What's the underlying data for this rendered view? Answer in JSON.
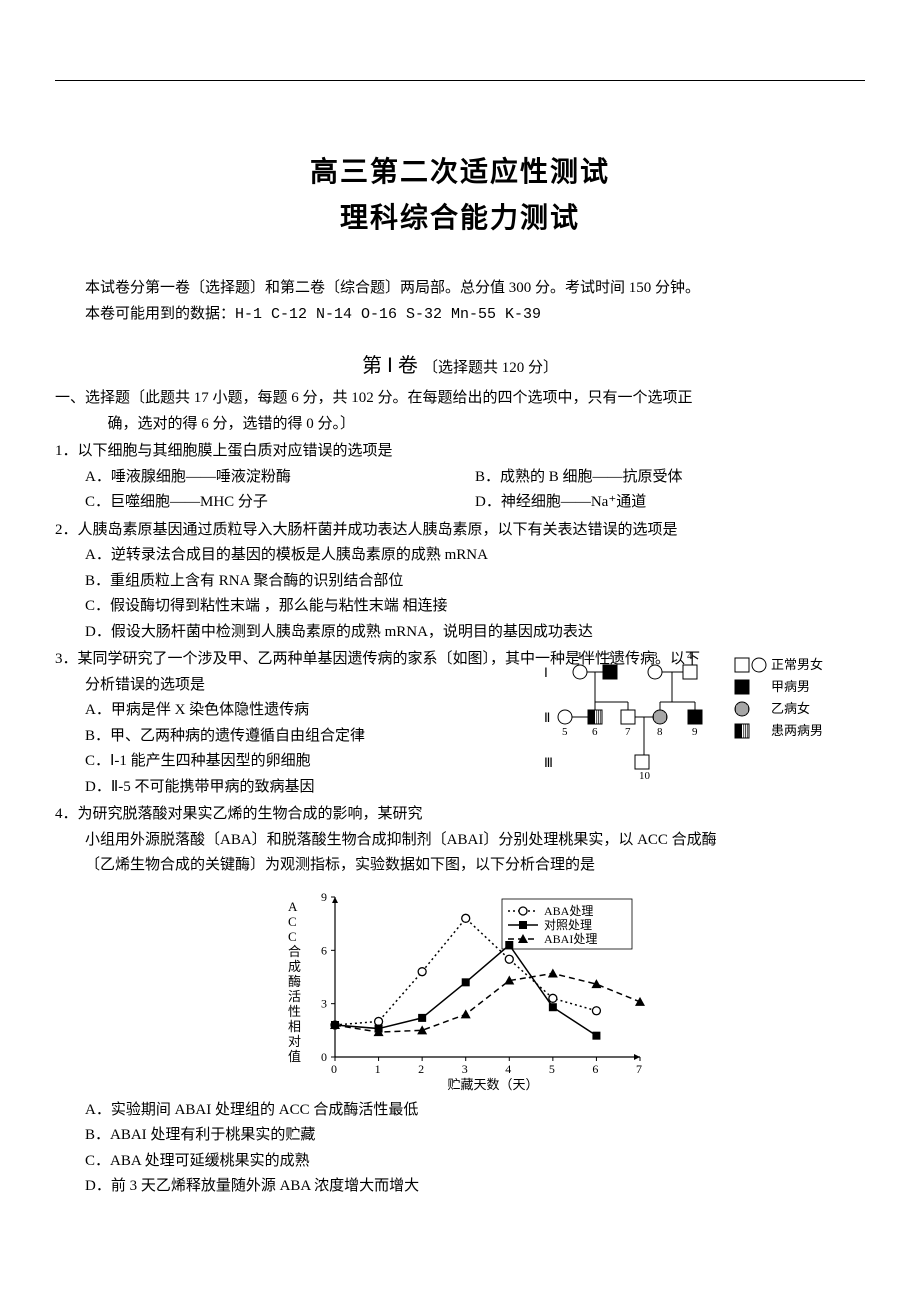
{
  "header": {
    "title_main": "高三第二次适应性测试",
    "title_sub": "理科综合能力测试",
    "intro": "本试卷分第一卷〔选择题〕和第二卷〔综合题〕两局部。总分值 300 分。考试时间 150 分钟。",
    "data_line": "本卷可能用到的数据：H-1  C-12  N-14  O-16  S-32  Mn-55  K-39"
  },
  "section1": {
    "heading_main": "第 Ⅰ 卷",
    "heading_paren": "〔选择题共 120 分〕",
    "instructions_line1": "一、选择题〔此题共 17 小题，每题 6 分，共 102 分。在每题给出的四个选项中，只有一个选项正",
    "instructions_line2": "确，选对的得 6 分，选错的得 0 分。〕"
  },
  "q1": {
    "stem": "1．以下细胞与其细胞膜上蛋白质对应错误的选项是",
    "A": "A．唾液腺细胞——唾液淀粉酶",
    "B": "B．成熟的 B 细胞——抗原受体",
    "C": "C．巨噬细胞——MHC 分子",
    "D": "D．神经细胞——Na⁺通道"
  },
  "q2": {
    "stem": "2．人胰岛素原基因通过质粒导入大肠杆菌并成功表达人胰岛素原，以下有关表达错误的选项是",
    "A": "A．逆转录法合成目的基因的模板是人胰岛素原的成熟 mRNA",
    "B": "B．重组质粒上含有 RNA 聚合酶的识别结合部位",
    "C": "C．假设酶切得到粘性末端 ，那么能与粘性末端 相连接",
    "D": "D．假设大肠杆菌中检测到人胰岛素原的成熟 mRNA，说明目的基因成功表达"
  },
  "q3": {
    "stem": "3．某同学研究了一个涉及甲、乙两种单基因遗传病的家系〔如图〕，其中一种是伴性遗传病。以下",
    "stem2": "分析错误的选项是",
    "A": "A．甲病是伴 X 染色体隐性遗传病",
    "B": "B．甲、乙两种病的遗传遵循自由组合定律",
    "C": "C．Ⅰ-1 能产生四种基因型的卵细胞",
    "D": "D．Ⅱ-5 不可能携带甲病的致病基因",
    "pedigree": {
      "type": "pedigree",
      "generations": [
        "Ⅰ",
        "Ⅱ",
        "Ⅲ"
      ],
      "gen1_numbers": [
        "1",
        "2",
        "3",
        "4"
      ],
      "gen2_numbers": [
        "5",
        "6",
        "7",
        "8",
        "9"
      ],
      "gen3_numbers": [
        "10"
      ],
      "legend": {
        "normal": "正常男女",
        "male_a": "甲病男",
        "female_b": "乙病女",
        "male_both": "患两病男"
      },
      "colors": {
        "stroke": "#000000",
        "fill_affected": "#000000",
        "fill_normal": "#ffffff"
      },
      "nodes": [
        {
          "id": "I-1",
          "gen": 1,
          "x": 40,
          "sex": "F",
          "pheno": "normal"
        },
        {
          "id": "I-2",
          "gen": 1,
          "x": 70,
          "sex": "M",
          "pheno": "A"
        },
        {
          "id": "I-3",
          "gen": 1,
          "x": 115,
          "sex": "F",
          "pheno": "normal"
        },
        {
          "id": "I-4",
          "gen": 1,
          "x": 150,
          "sex": "M",
          "pheno": "normal"
        },
        {
          "id": "II-5",
          "gen": 2,
          "x": 25,
          "sex": "F",
          "pheno": "normal"
        },
        {
          "id": "II-6",
          "gen": 2,
          "x": 55,
          "sex": "M",
          "pheno": "both"
        },
        {
          "id": "II-7",
          "gen": 2,
          "x": 88,
          "sex": "M",
          "pheno": "normal"
        },
        {
          "id": "II-8",
          "gen": 2,
          "x": 120,
          "sex": "F",
          "pheno": "B"
        },
        {
          "id": "II-9",
          "gen": 2,
          "x": 155,
          "sex": "M",
          "pheno": "A"
        },
        {
          "id": "III-10",
          "gen": 3,
          "x": 102,
          "sex": "M",
          "pheno": "normal"
        }
      ]
    }
  },
  "q4": {
    "stem": "4．为研究脱落酸对果实乙烯的生物合成的影响，某研究",
    "body1": "小组用外源脱落酸〔ABA〕和脱落酸生物合成抑制剂〔ABAI〕分别处理桃果实，以 ACC 合成酶",
    "body2": "〔乙烯生物合成的关键酶〕为观测指标，实验数据如下图，以下分析合理的是",
    "A": "A．实验期间 ABAI 处理组的 ACC 合成酶活性最低",
    "B": "B．ABAI 处理有利于桃果实的贮藏",
    "C": "C．ABA 处理可延缓桃果实的成熟",
    "D": "D．前 3 天乙烯释放量随外源 ABA 浓度增大而增大",
    "chart": {
      "type": "line",
      "x_label": "贮藏天数（天）",
      "y_label": "ACC合成酶活性相对值",
      "x_ticks": [
        0,
        1,
        2,
        3,
        4,
        5,
        6,
        7
      ],
      "y_ticks": [
        0,
        3,
        6,
        9
      ],
      "xlim": [
        0,
        7
      ],
      "ylim": [
        0,
        9
      ],
      "background": "#ffffff",
      "axis_color": "#000000",
      "tick_fontsize": 12,
      "label_fontsize": 13,
      "series": [
        {
          "name": "ABA处理",
          "marker": "circle-open",
          "line_style": "dotted",
          "color": "#000000",
          "data": [
            [
              0,
              1.8
            ],
            [
              1,
              2.0
            ],
            [
              2,
              4.8
            ],
            [
              3,
              7.8
            ],
            [
              4,
              5.5
            ],
            [
              5,
              3.3
            ],
            [
              6,
              2.6
            ]
          ]
        },
        {
          "name": "对照处理",
          "marker": "square-filled",
          "line_style": "solid",
          "color": "#000000",
          "data": [
            [
              0,
              1.8
            ],
            [
              1,
              1.6
            ],
            [
              2,
              2.2
            ],
            [
              3,
              4.2
            ],
            [
              4,
              6.3
            ],
            [
              5,
              2.8
            ],
            [
              6,
              1.2
            ]
          ]
        },
        {
          "name": "ABAI处理",
          "marker": "triangle-filled",
          "line_style": "dashed",
          "color": "#000000",
          "data": [
            [
              0,
              1.8
            ],
            [
              1,
              1.4
            ],
            [
              2,
              1.5
            ],
            [
              3,
              2.4
            ],
            [
              4,
              4.3
            ],
            [
              5,
              4.7
            ],
            [
              6,
              4.1
            ],
            [
              7,
              3.1
            ]
          ]
        }
      ],
      "legend_pos": "top-right",
      "marker_size": 5,
      "line_width": 1.5
    }
  }
}
